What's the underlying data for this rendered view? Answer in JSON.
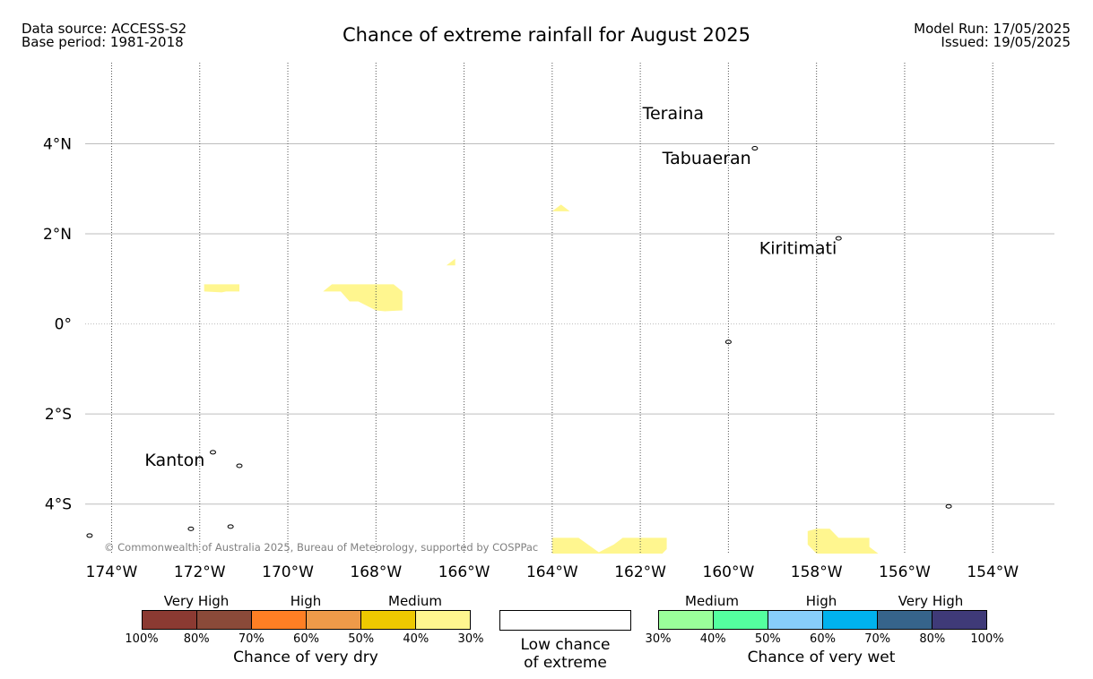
{
  "header": {
    "data_source": "Data source: ACCESS-S2",
    "base_period": "Base period: 1981-2018",
    "title": "Chance of extreme rainfall for August 2025",
    "model_run": "Model Run: 17/05/2025",
    "issued": "Issued: 19/05/2025"
  },
  "map": {
    "lon_range": [
      -174.6,
      -152.6
    ],
    "lat_range": [
      -5.1,
      5.8
    ],
    "lon_ticks": [
      {
        "value": -174,
        "label": "174°W"
      },
      {
        "value": -172,
        "label": "172°W"
      },
      {
        "value": -170,
        "label": "170°W"
      },
      {
        "value": -168,
        "label": "168°W"
      },
      {
        "value": -166,
        "label": "166°W"
      },
      {
        "value": -164,
        "label": "164°W"
      },
      {
        "value": -162,
        "label": "162°W"
      },
      {
        "value": -160,
        "label": "160°W"
      },
      {
        "value": -158,
        "label": "158°W"
      },
      {
        "value": -156,
        "label": "156°W"
      },
      {
        "value": -154,
        "label": "154°W"
      }
    ],
    "lat_ticks": [
      {
        "value": 4,
        "label": "4°N"
      },
      {
        "value": 2,
        "label": "2°N"
      },
      {
        "value": 0,
        "label": "0°"
      },
      {
        "value": -2,
        "label": "2°S"
      },
      {
        "value": -4,
        "label": "4°S"
      }
    ],
    "places": [
      {
        "name": "Teraina",
        "lon": -161.95,
        "lat": 4.55
      },
      {
        "name": "Tabuaeran",
        "lon": -161.5,
        "lat": 3.55
      },
      {
        "name": "Kiritimati",
        "lon": -159.3,
        "lat": 1.55
      },
      {
        "name": "Kanton",
        "lon": -173.25,
        "lat": -3.15
      }
    ],
    "islands": [
      {
        "lon": -159.4,
        "lat": 3.9
      },
      {
        "lon": -157.5,
        "lat": 1.9
      },
      {
        "lon": -171.7,
        "lat": -2.85
      },
      {
        "lon": -171.1,
        "lat": -3.15
      },
      {
        "lon": -160.0,
        "lat": -0.4
      },
      {
        "lon": -155.0,
        "lat": -4.05
      },
      {
        "lon": -172.2,
        "lat": -4.55
      },
      {
        "lon": -171.3,
        "lat": -4.5
      },
      {
        "lon": -174.5,
        "lat": -4.7
      }
    ],
    "medium_dry_color": "#fff68f",
    "medium_dry_regions": [
      [
        [
          -171.9,
          0.88
        ],
        [
          -171.1,
          0.88
        ],
        [
          -171.1,
          0.72
        ],
        [
          -171.4,
          0.72
        ],
        [
          -171.5,
          0.7
        ],
        [
          -171.9,
          0.72
        ]
      ],
      [
        [
          -169.2,
          0.72
        ],
        [
          -169.0,
          0.88
        ],
        [
          -167.6,
          0.88
        ],
        [
          -167.4,
          0.72
        ],
        [
          -167.4,
          0.3
        ],
        [
          -167.8,
          0.28
        ],
        [
          -168.0,
          0.3
        ],
        [
          -168.4,
          0.5
        ],
        [
          -168.6,
          0.5
        ],
        [
          -168.8,
          0.72
        ]
      ],
      [
        [
          -166.4,
          1.3
        ],
        [
          -166.2,
          1.45
        ],
        [
          -166.2,
          1.3
        ]
      ],
      [
        [
          -164.0,
          2.5
        ],
        [
          -163.8,
          2.65
        ],
        [
          -163.6,
          2.5
        ]
      ],
      [
        [
          -164.0,
          -4.75
        ],
        [
          -163.4,
          -4.75
        ],
        [
          -162.9,
          -5.1
        ],
        [
          -164.0,
          -5.1
        ]
      ],
      [
        [
          -163.0,
          -5.1
        ],
        [
          -162.6,
          -4.9
        ],
        [
          -162.4,
          -4.75
        ],
        [
          -161.4,
          -4.75
        ],
        [
          -161.4,
          -5.0
        ],
        [
          -161.5,
          -5.1
        ]
      ],
      [
        [
          -158.2,
          -4.6
        ],
        [
          -158.0,
          -4.55
        ],
        [
          -157.7,
          -4.55
        ],
        [
          -157.5,
          -4.75
        ],
        [
          -156.8,
          -4.75
        ],
        [
          -156.8,
          -4.95
        ],
        [
          -156.6,
          -5.1
        ],
        [
          -158.0,
          -5.1
        ],
        [
          -158.2,
          -4.9
        ]
      ]
    ],
    "copyright": "© Commonwealth of Australia 2025, Bureau of Meteorology, supported by COSPPac"
  },
  "legend": {
    "dry": {
      "heads": [
        "Very High",
        "High",
        "Medium"
      ],
      "colors": [
        "#8b3a32",
        "#8a4a39",
        "#ff7f24",
        "#ee9a49",
        "#eec900",
        "#fff68f"
      ],
      "ticks": [
        "100%",
        "80%",
        "70%",
        "60%",
        "50%",
        "40%",
        "30%"
      ],
      "title": "Chance of very dry"
    },
    "low": {
      "line1": "Low chance",
      "line2": "of extreme"
    },
    "wet": {
      "heads": [
        "Medium",
        "High",
        "Very High"
      ],
      "colors": [
        "#9aff9a",
        "#54ff9f",
        "#87cefa",
        "#00b2ee",
        "#36648b",
        "#3f3a78"
      ],
      "ticks": [
        "30%",
        "40%",
        "50%",
        "60%",
        "70%",
        "80%",
        "100%"
      ],
      "title": "Chance of very wet"
    }
  }
}
